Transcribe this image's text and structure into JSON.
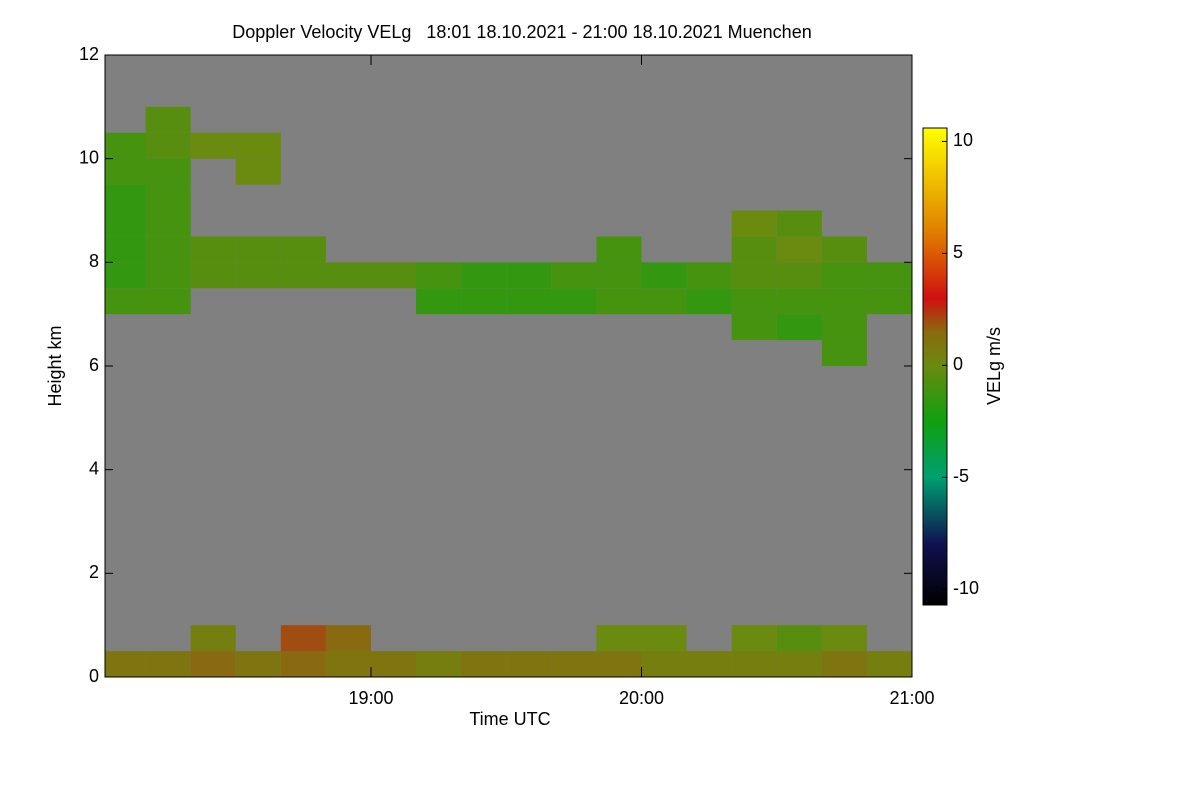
{
  "chart_data": {
    "type": "heatmap",
    "title": "Doppler Velocity VELg   18:01 18.10.2021 - 21:00 18.10.2021 Muenchen",
    "xlabel": "Time UTC",
    "ylabel": "Height km",
    "colorbar_label": "VELg m/s",
    "background": "#808080",
    "xlim": [
      1,
      180
    ],
    "xticks": [
      {
        "value": 60,
        "label": "19:00"
      },
      {
        "value": 120,
        "label": "20:00"
      },
      {
        "value": 180,
        "label": "21:00"
      }
    ],
    "ylim": [
      0,
      12
    ],
    "yticks": [
      0,
      2,
      4,
      6,
      8,
      10,
      12
    ],
    "zlim": [
      -10.7,
      10.6
    ],
    "zticks": [
      -10,
      -5,
      0,
      5,
      10
    ],
    "colorscale": [
      [
        -10.7,
        "#000000"
      ],
      [
        -8,
        "#101050"
      ],
      [
        -5,
        "#00a070"
      ],
      [
        -2.5,
        "#10a010"
      ],
      [
        0,
        "#6a8a10"
      ],
      [
        1.5,
        "#8a6a10"
      ],
      [
        3,
        "#d01010"
      ],
      [
        6,
        "#e08000"
      ],
      [
        10.6,
        "#ffff00"
      ]
    ],
    "x_edges": [
      1,
      10,
      20,
      30,
      40,
      50,
      60,
      70,
      80,
      90,
      100,
      110,
      120,
      130,
      140,
      150,
      160,
      170,
      180
    ],
    "y_edges": [
      0,
      0.5,
      1,
      1.5,
      2,
      2.5,
      3,
      3.5,
      4,
      4.5,
      5,
      5.5,
      6,
      6.5,
      7,
      7.5,
      8,
      8.5,
      9,
      9.5,
      10,
      10.5,
      11,
      11.5,
      12
    ],
    "values": [
      [
        1,
        1,
        1.5,
        1,
        1.5,
        1,
        1,
        0.5,
        1,
        1,
        1,
        1,
        0.5,
        0.5,
        0.5,
        0.5,
        1,
        0.5
      ],
      [
        null,
        null,
        0.5,
        null,
        2,
        1.5,
        null,
        null,
        null,
        null,
        null,
        0,
        0,
        null,
        0,
        -0.5,
        0,
        null
      ],
      [
        null,
        null,
        null,
        null,
        null,
        null,
        null,
        null,
        null,
        null,
        null,
        null,
        null,
        null,
        null,
        null,
        null,
        null
      ],
      [
        null,
        null,
        null,
        null,
        null,
        null,
        null,
        null,
        null,
        null,
        null,
        null,
        null,
        null,
        null,
        null,
        null,
        null
      ],
      [
        null,
        null,
        null,
        null,
        null,
        null,
        null,
        null,
        null,
        null,
        null,
        null,
        null,
        null,
        null,
        null,
        null,
        null
      ],
      [
        null,
        null,
        null,
        null,
        null,
        null,
        null,
        null,
        null,
        null,
        null,
        null,
        null,
        null,
        null,
        null,
        null,
        null
      ],
      [
        null,
        null,
        null,
        null,
        null,
        null,
        null,
        null,
        null,
        null,
        null,
        null,
        null,
        null,
        null,
        null,
        null,
        null
      ],
      [
        null,
        null,
        null,
        null,
        null,
        null,
        null,
        null,
        null,
        null,
        null,
        null,
        null,
        null,
        null,
        null,
        null,
        null
      ],
      [
        null,
        null,
        null,
        null,
        null,
        null,
        null,
        null,
        null,
        null,
        null,
        null,
        null,
        null,
        null,
        null,
        null,
        null
      ],
      [
        null,
        null,
        null,
        null,
        null,
        null,
        null,
        null,
        null,
        null,
        null,
        null,
        null,
        null,
        null,
        null,
        null,
        null
      ],
      [
        null,
        null,
        null,
        null,
        null,
        null,
        null,
        null,
        null,
        null,
        null,
        null,
        null,
        null,
        null,
        null,
        null,
        null
      ],
      [
        null,
        null,
        null,
        null,
        null,
        null,
        null,
        null,
        null,
        null,
        null,
        null,
        null,
        null,
        null,
        null,
        null,
        null
      ],
      [
        null,
        null,
        null,
        null,
        null,
        null,
        null,
        null,
        null,
        null,
        null,
        null,
        null,
        null,
        null,
        null,
        -1,
        null
      ],
      [
        null,
        null,
        null,
        null,
        null,
        null,
        null,
        null,
        null,
        null,
        null,
        null,
        null,
        null,
        -1,
        -1.5,
        -1,
        null
      ],
      [
        -1,
        -1,
        null,
        null,
        null,
        null,
        null,
        -1.5,
        -1.5,
        -1.5,
        -1.5,
        -1,
        -1,
        -1.5,
        -1,
        -1,
        -1,
        -1
      ],
      [
        -1.5,
        -1,
        -0.5,
        -0.5,
        -0.5,
        -0.5,
        -0.5,
        -1,
        -1.5,
        -1.5,
        -1,
        -1,
        -1.5,
        -1,
        -0.5,
        -0.5,
        -1,
        -1
      ],
      [
        -1.5,
        -1,
        -0.5,
        -0.5,
        -0.5,
        null,
        null,
        null,
        null,
        null,
        null,
        -1,
        null,
        null,
        -0.5,
        0,
        -0.5,
        null
      ],
      [
        -1.5,
        -1,
        null,
        null,
        null,
        null,
        null,
        null,
        null,
        null,
        null,
        null,
        null,
        null,
        0,
        -0.5,
        null,
        null
      ],
      [
        -1.5,
        -1,
        null,
        null,
        null,
        null,
        null,
        null,
        null,
        null,
        null,
        null,
        null,
        null,
        null,
        null,
        null,
        null
      ],
      [
        -1,
        -1,
        null,
        0,
        null,
        null,
        null,
        null,
        null,
        null,
        null,
        null,
        null,
        null,
        null,
        null,
        null,
        null
      ],
      [
        -1,
        -0.5,
        0,
        0,
        null,
        null,
        null,
        null,
        null,
        null,
        null,
        null,
        null,
        null,
        null,
        null,
        null,
        null
      ],
      [
        null,
        -0.5,
        null,
        null,
        null,
        null,
        null,
        null,
        null,
        null,
        null,
        null,
        null,
        null,
        null,
        null,
        null,
        null
      ],
      [
        null,
        null,
        null,
        null,
        null,
        null,
        null,
        null,
        null,
        null,
        null,
        null,
        null,
        null,
        null,
        null,
        null,
        null
      ],
      [
        null,
        null,
        null,
        null,
        null,
        null,
        null,
        null,
        null,
        null,
        null,
        null,
        null,
        null,
        null,
        null,
        null,
        null
      ]
    ]
  }
}
